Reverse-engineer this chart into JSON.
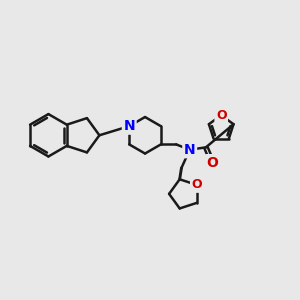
{
  "background_color": "#e8e8e8",
  "bond_color": "#1a1a1a",
  "N_color": "#0000ff",
  "O_color": "#cc0000",
  "line_width": 1.8,
  "figsize": [
    3.0,
    3.0
  ],
  "dpi": 100,
  "xlim": [
    0,
    10
  ],
  "ylim": [
    0,
    10
  ]
}
